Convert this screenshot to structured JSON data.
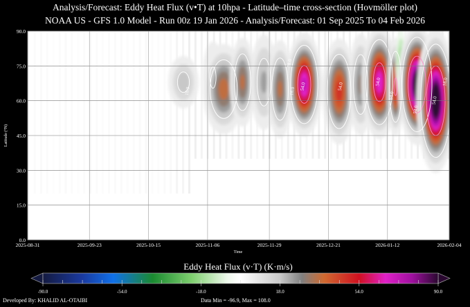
{
  "title": "Analysis/Forecast: Eddy Heat Flux (v•T) at 10hpa - Latitude–time cross-section (Hovmöller plot)",
  "subtitle": "NOAA US - GFS 1.0 Model - Run 00z 19 Jan 2026 - Analysis/Forecast: 01 Sep 2025 To 04 Feb 2026",
  "chart_data": {
    "type": "heatmap",
    "xlabel": "Time",
    "ylabel": "Latitude (°N)",
    "xlim_days_from_start": [
      0,
      157
    ],
    "x_start": "2025-08-31",
    "x_ticks": [
      {
        "label": "2025-08-31",
        "day": 0
      },
      {
        "label": "2025-09-23",
        "day": 23
      },
      {
        "label": "2025-10-15",
        "day": 45
      },
      {
        "label": "2025-11-06",
        "day": 67
      },
      {
        "label": "2025-11-29",
        "day": 90
      },
      {
        "label": "2025-12-21",
        "day": 112
      },
      {
        "label": "2026-01-12",
        "day": 134
      },
      {
        "label": "2026-02-04",
        "day": 157
      }
    ],
    "ylim": [
      0,
      90
    ],
    "y_ticks": [
      "0.0",
      "15.0",
      "30.0",
      "45.0",
      "60.0",
      "75.0",
      "90.0"
    ],
    "grid": true,
    "events": [
      {
        "day": 58,
        "lat": 68,
        "peak": 22,
        "sd_days": 3.5,
        "sd_lat": 7
      },
      {
        "day": 69,
        "lat": 70,
        "peak": 20,
        "sd_days": 2.5,
        "sd_lat": 10
      },
      {
        "day": 73,
        "lat": 65,
        "peak": 40,
        "sd_days": 4,
        "sd_lat": 10
      },
      {
        "day": 80,
        "lat": 68,
        "peak": 38,
        "sd_days": 2.5,
        "sd_lat": 10
      },
      {
        "day": 88,
        "lat": 68,
        "peak": 26,
        "sd_days": 3,
        "sd_lat": 12
      },
      {
        "day": 94,
        "lat": 65,
        "peak": 38,
        "sd_days": 2.5,
        "sd_lat": 11
      },
      {
        "day": 103,
        "lat": 67,
        "peak": 75,
        "sd_days": 3,
        "sd_lat": 10
      },
      {
        "day": 116,
        "lat": 64,
        "peak": 52,
        "sd_days": 3,
        "sd_lat": 11
      },
      {
        "day": 124,
        "lat": 67,
        "peak": 32,
        "sd_days": 2.5,
        "sd_lat": 12
      },
      {
        "day": 131,
        "lat": 68,
        "peak": 72,
        "sd_days": 3,
        "sd_lat": 11
      },
      {
        "day": 137,
        "lat": 66,
        "peak": 58,
        "sd_days": 1.5,
        "sd_lat": 10
      },
      {
        "day": 139,
        "lat": 76,
        "peak": -25,
        "sd_days": 1.2,
        "sd_lat": 9
      },
      {
        "day": 145,
        "lat": 67,
        "peak": 100,
        "sd_days": 3,
        "sd_lat": 11
      },
      {
        "day": 152,
        "lat": 60,
        "peak": 105,
        "sd_days": 3,
        "sd_lat": 13
      }
    ],
    "contour_labels": [
      {
        "text": "18.0",
        "day": 60,
        "lat": 64
      },
      {
        "text": "18.0",
        "day": 98,
        "lat": 76
      },
      {
        "text": "54.0",
        "day": 103,
        "lat": 66
      },
      {
        "text": "18.0",
        "day": 99,
        "lat": 64
      },
      {
        "text": "54.0",
        "day": 117,
        "lat": 66
      },
      {
        "text": "54.0",
        "day": 131,
        "lat": 68
      },
      {
        "text": "54.0",
        "day": 136,
        "lat": 62
      },
      {
        "text": "54.0",
        "day": 145,
        "lat": 56
      },
      {
        "text": "54.0",
        "day": 152,
        "lat": 60
      },
      {
        "text": "18.0",
        "day": 156,
        "lat": 68
      }
    ],
    "colorbar": {
      "title": "Eddy Heat Flux (v·T) (K·m/s)",
      "range": [
        -90,
        90
      ],
      "tick_labels": [
        "-90.0",
        "-54.0",
        "-18.0",
        "18.0",
        "54.0",
        "90.0"
      ],
      "stops": [
        {
          "v": -90,
          "c": "#141a40"
        },
        {
          "v": -72,
          "c": "#1a3aa0"
        },
        {
          "v": -58,
          "c": "#1070e8"
        },
        {
          "v": -40,
          "c": "#1a8a30"
        },
        {
          "v": -22,
          "c": "#80d070"
        },
        {
          "v": -6,
          "c": "#eef8ec"
        },
        {
          "v": 0,
          "c": "#ffffff"
        },
        {
          "v": 18,
          "c": "#c8c8c8"
        },
        {
          "v": 28,
          "c": "#808080"
        },
        {
          "v": 38,
          "c": "#d06a30"
        },
        {
          "v": 54,
          "c": "#d01020"
        },
        {
          "v": 66,
          "c": "#e020c8"
        },
        {
          "v": 78,
          "c": "#a010a0"
        },
        {
          "v": 90,
          "c": "#2a0830"
        }
      ]
    }
  },
  "footer": {
    "developer": "Developed By: KHALID AL-OTAIBI",
    "data_range": "Data Min = -96.9, Max = 108.0"
  }
}
